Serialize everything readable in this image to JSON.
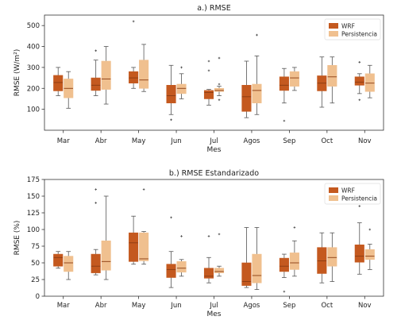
{
  "chart_data": [
    {
      "type": "box",
      "title": "a.) RMSE",
      "xlabel": "Mes",
      "ylabel": "RMSE (W/m²)",
      "ylim": [
        0,
        550
      ],
      "yticks": [
        100,
        200,
        300,
        400,
        500
      ],
      "grid": false,
      "legend_position": "top-right",
      "categories": [
        "Mar",
        "Abr",
        "May",
        "Jun",
        "Jul",
        "Agos",
        "Sep",
        "Oct",
        "Nov"
      ],
      "series": [
        {
          "name": "WRF",
          "color": "#c4591f",
          "boxes": [
            {
              "min": 165,
              "q1": 188,
              "median": 228,
              "q3": 262,
              "max": 300,
              "outliers": []
            },
            {
              "min": 165,
              "q1": 190,
              "median": 215,
              "q3": 250,
              "max": 335,
              "outliers": [
                380
              ]
            },
            {
              "min": 200,
              "q1": 225,
              "median": 250,
              "q3": 280,
              "max": 300,
              "outliers": [
                520
              ]
            },
            {
              "min": 75,
              "q1": 130,
              "median": 165,
              "q3": 215,
              "max": 310,
              "outliers": [
                50
              ]
            },
            {
              "min": 120,
              "q1": 150,
              "median": 180,
              "q3": 190,
              "max": 195,
              "outliers": [
                285,
                330
              ]
            },
            {
              "min": 60,
              "q1": 90,
              "median": 160,
              "q3": 215,
              "max": 330,
              "outliers": []
            },
            {
              "min": 130,
              "q1": 190,
              "median": 215,
              "q3": 255,
              "max": 295,
              "outliers": [
                45
              ]
            },
            {
              "min": 110,
              "q1": 188,
              "median": 225,
              "q3": 260,
              "max": 350,
              "outliers": []
            },
            {
              "min": 175,
              "q1": 215,
              "median": 230,
              "q3": 255,
              "max": 270,
              "outliers": [
                325,
                145
              ]
            }
          ]
        },
        {
          "name": "Persistencia",
          "color": "#f0c08f",
          "boxes": [
            {
              "min": 105,
              "q1": 155,
              "median": 200,
              "q3": 245,
              "max": 280,
              "outliers": []
            },
            {
              "min": 125,
              "q1": 195,
              "median": 245,
              "q3": 330,
              "max": 400,
              "outliers": []
            },
            {
              "min": 185,
              "q1": 200,
              "median": 240,
              "q3": 335,
              "max": 410,
              "outliers": []
            },
            {
              "min": 150,
              "q1": 175,
              "median": 200,
              "q3": 220,
              "max": 270,
              "outliers": [
                300
              ]
            },
            {
              "min": 165,
              "q1": 185,
              "median": 190,
              "q3": 200,
              "max": 210,
              "outliers": [
                345,
                220,
                145
              ]
            },
            {
              "min": 75,
              "q1": 130,
              "median": 190,
              "q3": 220,
              "max": 355,
              "outliers": [
                455
              ]
            },
            {
              "min": 190,
              "q1": 210,
              "median": 250,
              "q3": 280,
              "max": 300,
              "outliers": []
            },
            {
              "min": 130,
              "q1": 210,
              "median": 255,
              "q3": 310,
              "max": 350,
              "outliers": []
            },
            {
              "min": 155,
              "q1": 185,
              "median": 225,
              "q3": 270,
              "max": 310,
              "outliers": []
            }
          ]
        }
      ]
    },
    {
      "type": "box",
      "title": "b.) RMSE Estandarizado",
      "xlabel": "Mes",
      "ylabel": "RMSE (%)",
      "ylim": [
        0,
        175
      ],
      "yticks": [
        0,
        25,
        50,
        75,
        100,
        125,
        150,
        175
      ],
      "grid": false,
      "legend_position": "top-right",
      "categories": [
        "Mar",
        "Abr",
        "May",
        "Jun",
        "Jul",
        "Agos",
        "Sep",
        "Oct",
        "Nov"
      ],
      "series": [
        {
          "name": "WRF",
          "color": "#c4591f",
          "boxes": [
            {
              "min": 42,
              "q1": 45,
              "median": 58,
              "q3": 63,
              "max": 67,
              "outliers": []
            },
            {
              "min": 32,
              "q1": 35,
              "median": 45,
              "q3": 63,
              "max": 70,
              "outliers": [
                160,
                140
              ]
            },
            {
              "min": 48,
              "q1": 52,
              "median": 80,
              "q3": 95,
              "max": 120,
              "outliers": []
            },
            {
              "min": 13,
              "q1": 28,
              "median": 40,
              "q3": 48,
              "max": 67,
              "outliers": [
                118
              ]
            },
            {
              "min": 20,
              "q1": 27,
              "median": 30,
              "q3": 42,
              "max": 58,
              "outliers": [
                90
              ]
            },
            {
              "min": 13,
              "q1": 16,
              "median": 22,
              "q3": 50,
              "max": 103,
              "outliers": []
            },
            {
              "min": 28,
              "q1": 37,
              "median": 45,
              "q3": 57,
              "max": 63,
              "outliers": [
                7
              ]
            },
            {
              "min": 20,
              "q1": 34,
              "median": 53,
              "q3": 73,
              "max": 95,
              "outliers": []
            },
            {
              "min": 33,
              "q1": 51,
              "median": 60,
              "q3": 77,
              "max": 110,
              "outliers": [
                135
              ]
            }
          ]
        },
        {
          "name": "Persistencia",
          "color": "#f0c08f",
          "boxes": [
            {
              "min": 25,
              "q1": 37,
              "median": 50,
              "q3": 60,
              "max": 67,
              "outliers": []
            },
            {
              "min": 25,
              "q1": 39,
              "median": 52,
              "q3": 83,
              "max": 150,
              "outliers": []
            },
            {
              "min": 48,
              "q1": 53,
              "median": 56,
              "q3": 95,
              "max": 97,
              "outliers": [
                160
              ]
            },
            {
              "min": 30,
              "q1": 36,
              "median": 42,
              "q3": 52,
              "max": 55,
              "outliers": [
                90
              ]
            },
            {
              "min": 30,
              "q1": 35,
              "median": 37,
              "q3": 42,
              "max": 45,
              "outliers": [
                93
              ]
            },
            {
              "min": 10,
              "q1": 20,
              "median": 31,
              "q3": 63,
              "max": 103,
              "outliers": []
            },
            {
              "min": 30,
              "q1": 40,
              "median": 50,
              "q3": 65,
              "max": 83,
              "outliers": [
                103
              ]
            },
            {
              "min": 22,
              "q1": 45,
              "median": 58,
              "q3": 73,
              "max": 95,
              "outliers": []
            },
            {
              "min": 40,
              "q1": 55,
              "median": 60,
              "q3": 70,
              "max": 78,
              "outliers": [
                100
              ]
            }
          ]
        }
      ]
    }
  ]
}
